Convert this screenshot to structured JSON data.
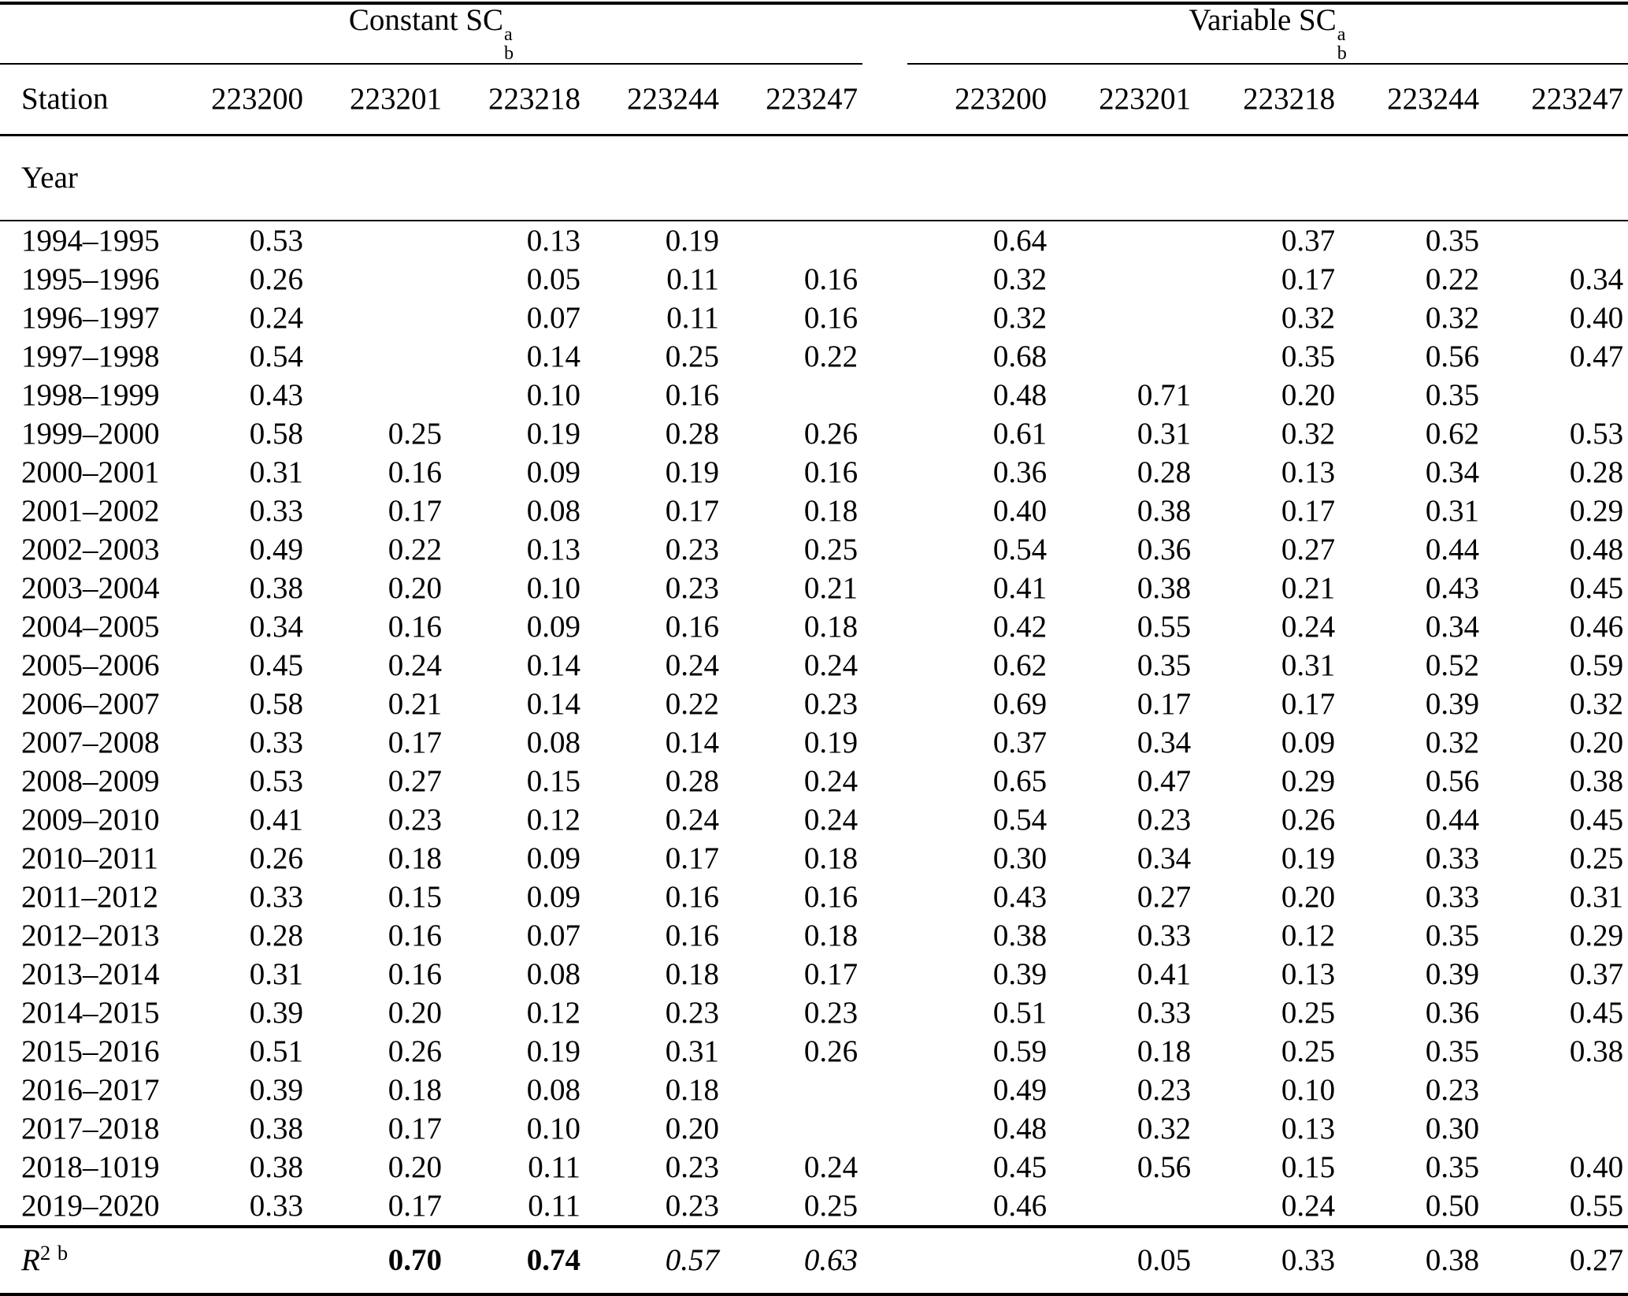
{
  "page": {
    "group_headers": [
      {
        "prefix": "Constant SC",
        "sup": "a",
        "sub": "b"
      },
      {
        "prefix": "Variable SC",
        "sup": "a",
        "sub": "b"
      }
    ],
    "station_label": "Station",
    "year_label": "Year",
    "stations_constant": [
      "223200",
      "223201",
      "223218",
      "223244",
      "223247"
    ],
    "stations_variable": [
      "223200",
      "223201",
      "223218",
      "223244",
      "223247"
    ],
    "rows": [
      {
        "year": "1994–1995",
        "constant": [
          "0.53",
          "",
          "0.13",
          "0.19",
          ""
        ],
        "variable": [
          "0.64",
          "",
          "0.37",
          "0.35",
          ""
        ]
      },
      {
        "year": "1995–1996",
        "constant": [
          "0.26",
          "",
          "0.05",
          "0.11",
          "0.16"
        ],
        "variable": [
          "0.32",
          "",
          "0.17",
          "0.22",
          "0.34"
        ]
      },
      {
        "year": "1996–1997",
        "constant": [
          "0.24",
          "",
          "0.07",
          "0.11",
          "0.16"
        ],
        "variable": [
          "0.32",
          "",
          "0.32",
          "0.32",
          "0.40"
        ]
      },
      {
        "year": "1997–1998",
        "constant": [
          "0.54",
          "",
          "0.14",
          "0.25",
          "0.22"
        ],
        "variable": [
          "0.68",
          "",
          "0.35",
          "0.56",
          "0.47"
        ]
      },
      {
        "year": "1998–1999",
        "constant": [
          "0.43",
          "",
          "0.10",
          "0.16",
          ""
        ],
        "variable": [
          "0.48",
          "0.71",
          "0.20",
          "0.35",
          ""
        ]
      },
      {
        "year": "1999–2000",
        "constant": [
          "0.58",
          "0.25",
          "0.19",
          "0.28",
          "0.26"
        ],
        "variable": [
          "0.61",
          "0.31",
          "0.32",
          "0.62",
          "0.53"
        ]
      },
      {
        "year": "2000–2001",
        "constant": [
          "0.31",
          "0.16",
          "0.09",
          "0.19",
          "0.16"
        ],
        "variable": [
          "0.36",
          "0.28",
          "0.13",
          "0.34",
          "0.28"
        ]
      },
      {
        "year": "2001–2002",
        "constant": [
          "0.33",
          "0.17",
          "0.08",
          "0.17",
          "0.18"
        ],
        "variable": [
          "0.40",
          "0.38",
          "0.17",
          "0.31",
          "0.29"
        ]
      },
      {
        "year": "2002–2003",
        "constant": [
          "0.49",
          "0.22",
          "0.13",
          "0.23",
          "0.25"
        ],
        "variable": [
          "0.54",
          "0.36",
          "0.27",
          "0.44",
          "0.48"
        ]
      },
      {
        "year": "2003–2004",
        "constant": [
          "0.38",
          "0.20",
          "0.10",
          "0.23",
          "0.21"
        ],
        "variable": [
          "0.41",
          "0.38",
          "0.21",
          "0.43",
          "0.45"
        ]
      },
      {
        "year": "2004–2005",
        "constant": [
          "0.34",
          "0.16",
          "0.09",
          "0.16",
          "0.18"
        ],
        "variable": [
          "0.42",
          "0.55",
          "0.24",
          "0.34",
          "0.46"
        ]
      },
      {
        "year": "2005–2006",
        "constant": [
          "0.45",
          "0.24",
          "0.14",
          "0.24",
          "0.24"
        ],
        "variable": [
          "0.62",
          "0.35",
          "0.31",
          "0.52",
          "0.59"
        ]
      },
      {
        "year": "2006–2007",
        "constant": [
          "0.58",
          "0.21",
          "0.14",
          "0.22",
          "0.23"
        ],
        "variable": [
          "0.69",
          "0.17",
          "0.17",
          "0.39",
          "0.32"
        ]
      },
      {
        "year": "2007–2008",
        "constant": [
          "0.33",
          "0.17",
          "0.08",
          "0.14",
          "0.19"
        ],
        "variable": [
          "0.37",
          "0.34",
          "0.09",
          "0.32",
          "0.20"
        ]
      },
      {
        "year": "2008–2009",
        "constant": [
          "0.53",
          "0.27",
          "0.15",
          "0.28",
          "0.24"
        ],
        "variable": [
          "0.65",
          "0.47",
          "0.29",
          "0.56",
          "0.38"
        ]
      },
      {
        "year": "2009–2010",
        "constant": [
          "0.41",
          "0.23",
          "0.12",
          "0.24",
          "0.24"
        ],
        "variable": [
          "0.54",
          "0.23",
          "0.26",
          "0.44",
          "0.45"
        ]
      },
      {
        "year": "2010–2011",
        "constant": [
          "0.26",
          "0.18",
          "0.09",
          "0.17",
          "0.18"
        ],
        "variable": [
          "0.30",
          "0.34",
          "0.19",
          "0.33",
          "0.25"
        ]
      },
      {
        "year": "2011–2012",
        "constant": [
          "0.33",
          "0.15",
          "0.09",
          "0.16",
          "0.16"
        ],
        "variable": [
          "0.43",
          "0.27",
          "0.20",
          "0.33",
          "0.31"
        ]
      },
      {
        "year": "2012–2013",
        "constant": [
          "0.28",
          "0.16",
          "0.07",
          "0.16",
          "0.18"
        ],
        "variable": [
          "0.38",
          "0.33",
          "0.12",
          "0.35",
          "0.29"
        ]
      },
      {
        "year": "2013–2014",
        "constant": [
          "0.31",
          "0.16",
          "0.08",
          "0.18",
          "0.17"
        ],
        "variable": [
          "0.39",
          "0.41",
          "0.13",
          "0.39",
          "0.37"
        ]
      },
      {
        "year": "2014–2015",
        "constant": [
          "0.39",
          "0.20",
          "0.12",
          "0.23",
          "0.23"
        ],
        "variable": [
          "0.51",
          "0.33",
          "0.25",
          "0.36",
          "0.45"
        ]
      },
      {
        "year": "2015–2016",
        "constant": [
          "0.51",
          "0.26",
          "0.19",
          "0.31",
          "0.26"
        ],
        "variable": [
          "0.59",
          "0.18",
          "0.25",
          "0.35",
          "0.38"
        ]
      },
      {
        "year": "2016–2017",
        "constant": [
          "0.39",
          "0.18",
          "0.08",
          "0.18",
          ""
        ],
        "variable": [
          "0.49",
          "0.23",
          "0.10",
          "0.23",
          ""
        ]
      },
      {
        "year": "2017–2018",
        "constant": [
          "0.38",
          "0.17",
          "0.10",
          "0.20",
          ""
        ],
        "variable": [
          "0.48",
          "0.32",
          "0.13",
          "0.30",
          ""
        ]
      },
      {
        "year": "2018–1019",
        "constant": [
          "0.38",
          "0.20",
          "0.11",
          "0.23",
          "0.24"
        ],
        "variable": [
          "0.45",
          "0.56",
          "0.15",
          "0.35",
          "0.40"
        ]
      },
      {
        "year": "2019–2020",
        "constant": [
          "0.33",
          "0.17",
          "0.11",
          "0.23",
          "0.25"
        ],
        "variable": [
          "0.46",
          "",
          "0.24",
          "0.50",
          "0.55"
        ]
      }
    ],
    "r2_row": {
      "label_base": "R",
      "label_sup": "2 b",
      "constant": [
        {
          "value": "",
          "style": "normal"
        },
        {
          "value": "0.70",
          "style": "bold"
        },
        {
          "value": "0.74",
          "style": "bold"
        },
        {
          "value": "0.57",
          "style": "italic"
        },
        {
          "value": "0.63",
          "style": "italic"
        }
      ],
      "variable": [
        {
          "value": "",
          "style": "normal"
        },
        {
          "value": "0.05",
          "style": "normal"
        },
        {
          "value": "0.33",
          "style": "normal"
        },
        {
          "value": "0.38",
          "style": "normal"
        },
        {
          "value": "0.27",
          "style": "normal"
        }
      ]
    }
  }
}
